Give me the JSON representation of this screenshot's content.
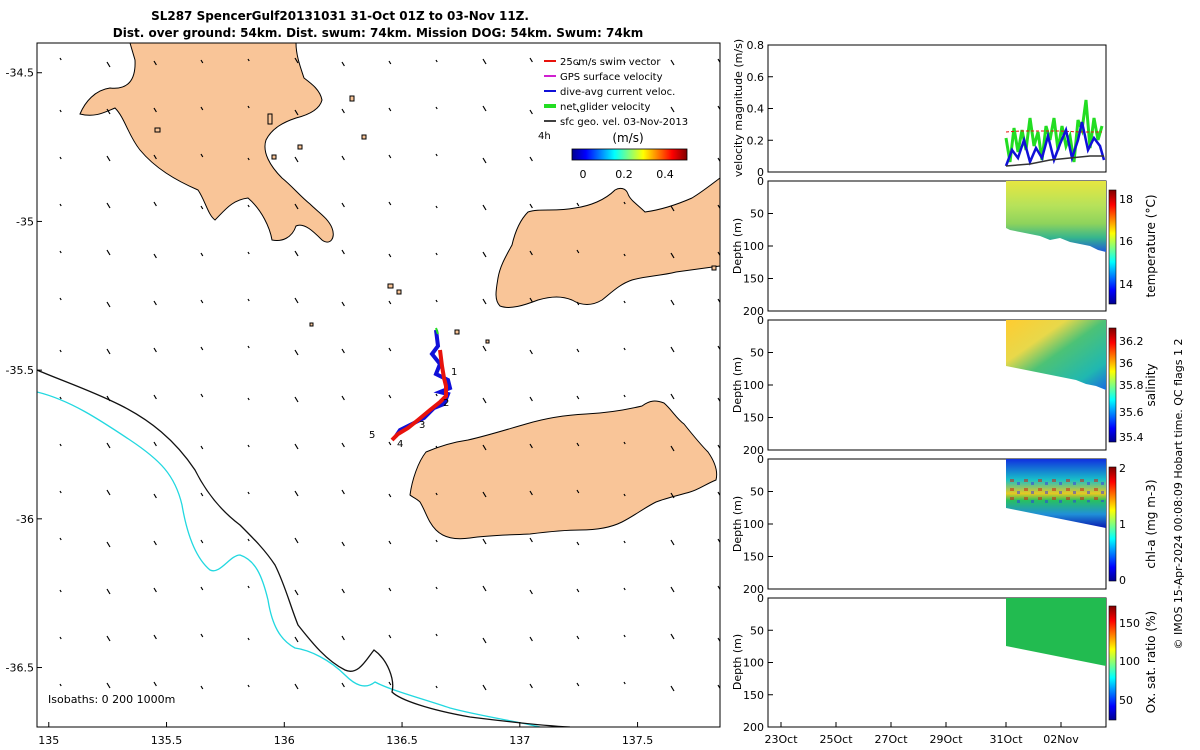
{
  "title": {
    "line1": "SL287 SpencerGulf20131031 31-Oct 01Z to 03-Nov 11Z.",
    "line2": "Dist. over ground: 54km. Dist. swum: 74km. Mission DOG: 54km. Swum: 74km"
  },
  "colors": {
    "land": "#f9c598",
    "track_blue": "#1010d8",
    "track_red": "#e8120c",
    "track_green": "#22dd22",
    "isobath_200": "#111111",
    "isobath_1000": "#22d8e0"
  },
  "map": {
    "lon_range": [
      134.95,
      137.85
    ],
    "lat_range": [
      -36.7,
      -34.4
    ],
    "x_ticks": [
      "135",
      "135.5",
      "136",
      "136.5",
      "137",
      "137.5"
    ],
    "y_ticks": [
      "-34.5",
      "-35",
      "-35.5",
      "-36",
      "-36.5"
    ],
    "legend": [
      {
        "label": "25cm/s swim vector",
        "color": "#e8120c"
      },
      {
        "label": "GPS surface velocity",
        "color": "#d020d0"
      },
      {
        "label": "dive-avg current veloc.",
        "color": "#1010d8"
      },
      {
        "label": "net glider velocity",
        "color": "#22dd22"
      },
      {
        "label": "sfc geo. vel. 03-Nov-2013",
        "color": "#000000"
      }
    ],
    "colorbar": {
      "label": "(m/s)",
      "ticks": [
        "0",
        "0.2",
        "0.4"
      ],
      "side_label": "4h"
    },
    "track_labels": [
      "1",
      "2",
      "3",
      "4",
      "5"
    ],
    "isobath_label": "Isobaths: 0   200  1000m"
  },
  "panels": {
    "velocity": {
      "ylabel": "velocity magnitude (m/s)",
      "ticks": [
        "0",
        "0.2",
        "0.4",
        "0.6",
        "0.8"
      ],
      "ylim": [
        0,
        0.8
      ]
    },
    "depth_ticks": [
      "0",
      "50",
      "100",
      "150",
      "200"
    ],
    "depth_label": "Depth (m)",
    "temperature": {
      "label": "temperature (°C)",
      "ticks": [
        "18",
        "16",
        "14"
      ]
    },
    "salinity": {
      "label": "salinity",
      "ticks": [
        "36.2",
        "36",
        "35.8",
        "35.6",
        "35.4"
      ]
    },
    "chla": {
      "label": "chl-a (mg m-3)",
      "ticks": [
        "2",
        "1",
        "0"
      ]
    },
    "oxygen": {
      "label": "Ox. sat. ratio (%)",
      "ticks": [
        "150",
        "100",
        "50"
      ]
    },
    "date_ticks": [
      "23Oct",
      "25Oct",
      "27Oct",
      "29Oct",
      "31Oct",
      "02Nov"
    ]
  },
  "footer": "© IMOS 15-Apr-2024 00:08:09 Hobart time. QC flags 1  2"
}
